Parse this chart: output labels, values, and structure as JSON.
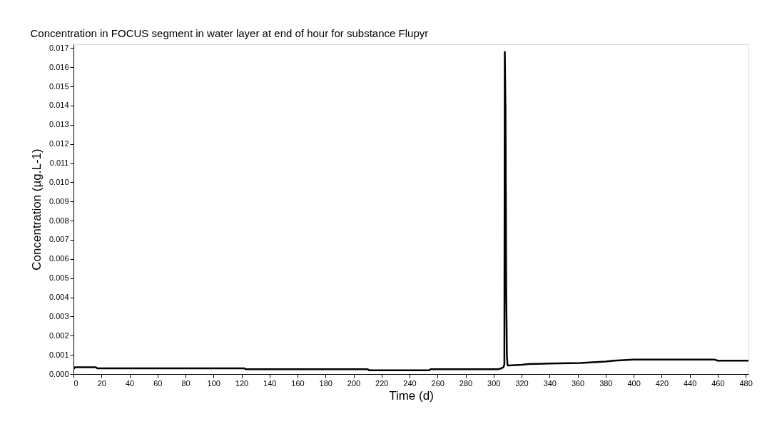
{
  "chart_data": {
    "type": "line",
    "title": "Concentration in FOCUS segment in water layer at end of hour for substance Flupyr",
    "xlabel": "Time (d)",
    "ylabel": "Concentration (µg.L-1)",
    "x": [
      0,
      1,
      16,
      17,
      122,
      123,
      210,
      211,
      254,
      255,
      303,
      305,
      307,
      307.7,
      308,
      308.5,
      309,
      309.5,
      310,
      311,
      320,
      325,
      340,
      362,
      380,
      386,
      400,
      458,
      460,
      482
    ],
    "series": [
      {
        "color": "#000000",
        "values": [
          0.00025,
          0.00035,
          0.00035,
          0.0003,
          0.0003,
          0.00025,
          0.00025,
          0.0002,
          0.0002,
          0.00025,
          0.00025,
          0.00028,
          0.00035,
          0.0005,
          0.0168,
          0.0138,
          0.0045,
          0.0009,
          0.00045,
          0.00045,
          0.00048,
          0.00052,
          0.00055,
          0.00058,
          0.00065,
          0.0007,
          0.00075,
          0.00075,
          0.0007,
          0.0007
        ]
      }
    ],
    "xlim": [
      0,
      482
    ],
    "xticks": [
      0,
      20,
      40,
      60,
      80,
      100,
      120,
      140,
      160,
      180,
      200,
      220,
      240,
      260,
      280,
      300,
      320,
      340,
      360,
      380,
      400,
      420,
      440,
      460,
      480
    ],
    "ylim": [
      0,
      0.0172
    ],
    "yticks": [
      {
        "value": 0,
        "label": "0.000"
      },
      {
        "value": 0.001,
        "label": "0.001"
      },
      {
        "value": 0.002,
        "label": "0.002"
      },
      {
        "value": 0.003,
        "label": "0.003"
      },
      {
        "value": 0.004,
        "label": "0.004"
      },
      {
        "value": 0.005,
        "label": "0.005"
      },
      {
        "value": 0.006,
        "label": "0.006"
      },
      {
        "value": 0.007,
        "label": "0.007"
      },
      {
        "value": 0.008,
        "label": "0.008"
      },
      {
        "value": 0.009,
        "label": "0.009"
      },
      {
        "value": 0.01,
        "label": "0.010"
      },
      {
        "value": 0.011,
        "label": "0.011"
      },
      {
        "value": 0.012,
        "label": "0.012"
      },
      {
        "value": 0.013,
        "label": "0.013"
      },
      {
        "value": 0.014,
        "label": "0.014"
      },
      {
        "value": 0.015,
        "label": "0.015"
      },
      {
        "value": 0.016,
        "label": "0.016"
      },
      {
        "value": 0.017,
        "label": "0.017"
      }
    ],
    "grid": false,
    "legend": false,
    "marker": "none",
    "line_style": "solid"
  }
}
